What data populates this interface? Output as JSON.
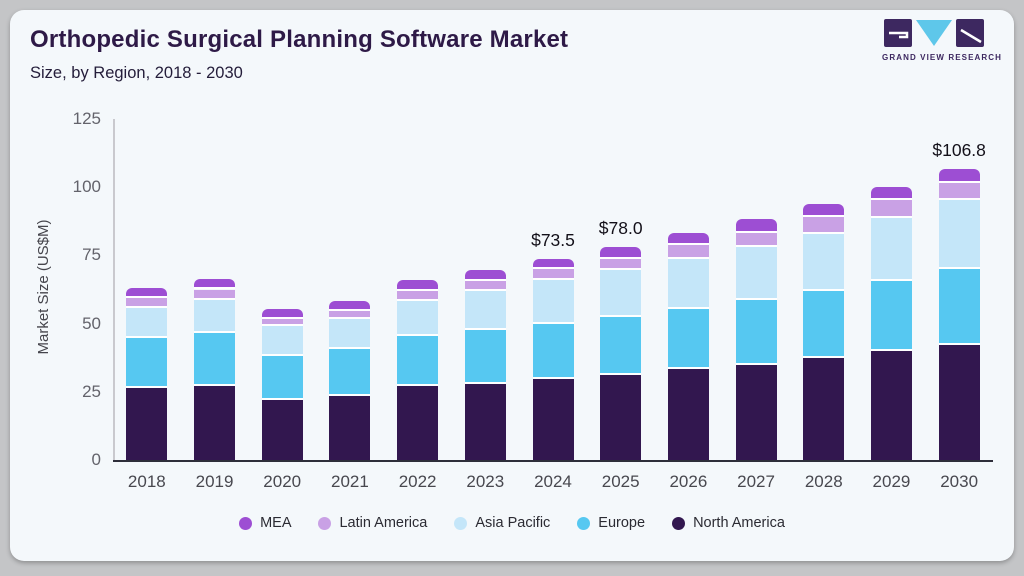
{
  "header": {
    "title": "Orthopedic Surgical Planning Software Market",
    "subtitle": "Size, by Region, 2018 - 2030"
  },
  "logo": {
    "text": "GRAND VIEW RESEARCH"
  },
  "colors": {
    "card_background": "#f4f8fb",
    "outer_background": "#c4c5c7",
    "title_text": "#2e1a47",
    "axis_baseline": "#2e2e3a",
    "logo_dark": "#3d2860",
    "logo_cyan": "#5ec7ea"
  },
  "chart_data": {
    "type": "bar",
    "stacked": true,
    "title": "Orthopedic Surgical Planning Software Market Size, by Region, 2018 - 2030",
    "xlabel": "",
    "ylabel": "Market Size (US$M)",
    "ylim": [
      0,
      125
    ],
    "yticks": [
      0,
      25,
      50,
      75,
      100,
      125
    ],
    "grid": false,
    "legend_position": "bottom",
    "categories": [
      "2018",
      "2019",
      "2020",
      "2021",
      "2022",
      "2023",
      "2024",
      "2025",
      "2026",
      "2027",
      "2028",
      "2029",
      "2030"
    ],
    "series": [
      {
        "name": "North America",
        "color": "#32174f",
        "values": [
          26.3,
          27.0,
          22.1,
          23.5,
          27.0,
          27.9,
          29.7,
          31.3,
          33.3,
          34.9,
          37.3,
          40.0,
          42.3
        ]
      },
      {
        "name": "Europe",
        "color": "#56c8f1",
        "values": [
          18.4,
          19.5,
          16.2,
          17.2,
          18.3,
          19.9,
          20.2,
          21.2,
          22.1,
          23.8,
          24.8,
          25.7,
          27.6
        ]
      },
      {
        "name": "Asia Pacific",
        "color": "#c4e6f9",
        "values": [
          11.0,
          12.2,
          10.7,
          11.0,
          12.9,
          14.1,
          16.0,
          17.1,
          18.1,
          19.5,
          20.9,
          22.9,
          25.4
        ]
      },
      {
        "name": "Latin America",
        "color": "#c9a1e5",
        "values": [
          3.7,
          3.8,
          2.8,
          2.9,
          3.7,
          3.7,
          4.0,
          4.2,
          5.2,
          5.1,
          6.0,
          6.7,
          6.2
        ]
      },
      {
        "name": "MEA",
        "color": "#9d4ed3",
        "values": [
          3.7,
          3.9,
          3.6,
          3.7,
          4.0,
          4.0,
          3.6,
          4.2,
          4.4,
          4.9,
          4.8,
          4.8,
          5.3
        ]
      }
    ],
    "stack_order": "bottom-to-top",
    "legend_order": [
      "MEA",
      "Latin America",
      "Asia Pacific",
      "Europe",
      "North America"
    ],
    "value_labels": [
      "",
      "",
      "",
      "",
      "",
      "",
      "$73.5",
      "$78.0",
      "",
      "",
      "",
      "",
      "$106.8"
    ],
    "totals": [
      63.1,
      66.4,
      55.4,
      58.3,
      65.9,
      69.6,
      73.5,
      78.0,
      83.1,
      88.2,
      93.8,
      100.1,
      106.8
    ]
  }
}
